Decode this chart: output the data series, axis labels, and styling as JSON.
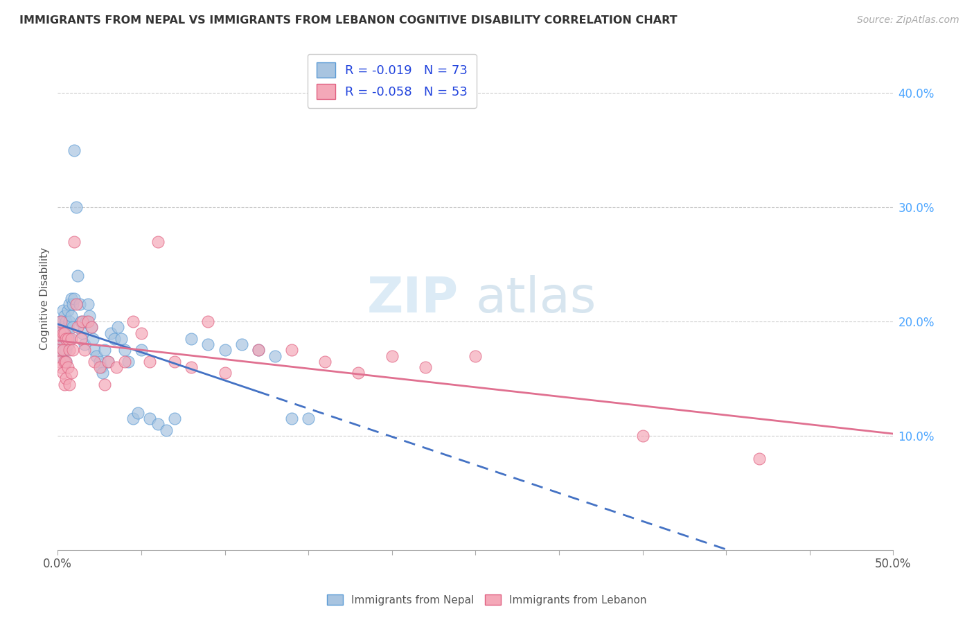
{
  "title": "IMMIGRANTS FROM NEPAL VS IMMIGRANTS FROM LEBANON COGNITIVE DISABILITY CORRELATION CHART",
  "source": "Source: ZipAtlas.com",
  "ylabel": "Cognitive Disability",
  "xlim": [
    0.0,
    0.5
  ],
  "ylim": [
    0.0,
    0.44
  ],
  "x_ticks": [
    0.0,
    0.05,
    0.1,
    0.15,
    0.2,
    0.25,
    0.3,
    0.35,
    0.4,
    0.45,
    0.5
  ],
  "x_tick_labels_show": [
    "0.0%",
    "",
    "",
    "",
    "",
    "",
    "",
    "",
    "",
    "",
    "50.0%"
  ],
  "y_ticks_right": [
    0.1,
    0.2,
    0.3,
    0.4
  ],
  "nepal_color": "#a8c4e0",
  "nepal_edge_color": "#5b9bd5",
  "lebanon_color": "#f4a8b8",
  "lebanon_edge_color": "#e06080",
  "trend_nepal_color": "#4472c4",
  "trend_lebanon_color": "#e07090",
  "R_nepal": -0.019,
  "N_nepal": 73,
  "R_lebanon": -0.058,
  "N_lebanon": 53,
  "legend_label_nepal": "Immigrants from Nepal",
  "legend_label_lebanon": "Immigrants from Lebanon",
  "watermark_zip": "ZIP",
  "watermark_atlas": "atlas",
  "nepal_x": [
    0.001,
    0.001,
    0.001,
    0.001,
    0.002,
    0.002,
    0.002,
    0.002,
    0.002,
    0.003,
    0.003,
    0.003,
    0.003,
    0.003,
    0.004,
    0.004,
    0.004,
    0.004,
    0.005,
    0.005,
    0.005,
    0.005,
    0.006,
    0.006,
    0.006,
    0.007,
    0.007,
    0.007,
    0.008,
    0.008,
    0.009,
    0.009,
    0.01,
    0.01,
    0.011,
    0.012,
    0.013,
    0.014,
    0.015,
    0.016,
    0.017,
    0.018,
    0.019,
    0.02,
    0.021,
    0.022,
    0.023,
    0.025,
    0.026,
    0.027,
    0.028,
    0.03,
    0.032,
    0.034,
    0.036,
    0.038,
    0.04,
    0.042,
    0.045,
    0.048,
    0.05,
    0.055,
    0.06,
    0.065,
    0.07,
    0.08,
    0.09,
    0.1,
    0.11,
    0.12,
    0.13,
    0.14,
    0.15
  ],
  "nepal_y": [
    0.195,
    0.2,
    0.185,
    0.19,
    0.195,
    0.185,
    0.18,
    0.175,
    0.17,
    0.2,
    0.185,
    0.175,
    0.21,
    0.195,
    0.205,
    0.19,
    0.175,
    0.165,
    0.2,
    0.185,
    0.175,
    0.165,
    0.21,
    0.195,
    0.18,
    0.215,
    0.2,
    0.185,
    0.22,
    0.205,
    0.215,
    0.195,
    0.35,
    0.22,
    0.3,
    0.24,
    0.215,
    0.2,
    0.19,
    0.18,
    0.2,
    0.215,
    0.205,
    0.195,
    0.185,
    0.175,
    0.17,
    0.165,
    0.16,
    0.155,
    0.175,
    0.165,
    0.19,
    0.185,
    0.195,
    0.185,
    0.175,
    0.165,
    0.115,
    0.12,
    0.175,
    0.115,
    0.11,
    0.105,
    0.115,
    0.185,
    0.18,
    0.175,
    0.18,
    0.175,
    0.17,
    0.115,
    0.115
  ],
  "lebanon_x": [
    0.001,
    0.001,
    0.001,
    0.002,
    0.002,
    0.002,
    0.003,
    0.003,
    0.003,
    0.004,
    0.004,
    0.004,
    0.005,
    0.005,
    0.005,
    0.006,
    0.006,
    0.007,
    0.007,
    0.008,
    0.008,
    0.009,
    0.01,
    0.011,
    0.012,
    0.014,
    0.015,
    0.016,
    0.018,
    0.02,
    0.022,
    0.025,
    0.028,
    0.03,
    0.035,
    0.04,
    0.045,
    0.05,
    0.055,
    0.06,
    0.07,
    0.08,
    0.09,
    0.1,
    0.12,
    0.14,
    0.16,
    0.18,
    0.2,
    0.22,
    0.25,
    0.35,
    0.42
  ],
  "lebanon_y": [
    0.19,
    0.175,
    0.165,
    0.2,
    0.185,
    0.16,
    0.19,
    0.175,
    0.155,
    0.19,
    0.165,
    0.145,
    0.185,
    0.165,
    0.15,
    0.185,
    0.16,
    0.175,
    0.145,
    0.185,
    0.155,
    0.175,
    0.27,
    0.215,
    0.195,
    0.185,
    0.2,
    0.175,
    0.2,
    0.195,
    0.165,
    0.16,
    0.145,
    0.165,
    0.16,
    0.165,
    0.2,
    0.19,
    0.165,
    0.27,
    0.165,
    0.16,
    0.2,
    0.155,
    0.175,
    0.175,
    0.165,
    0.155,
    0.17,
    0.16,
    0.17,
    0.1,
    0.08
  ]
}
